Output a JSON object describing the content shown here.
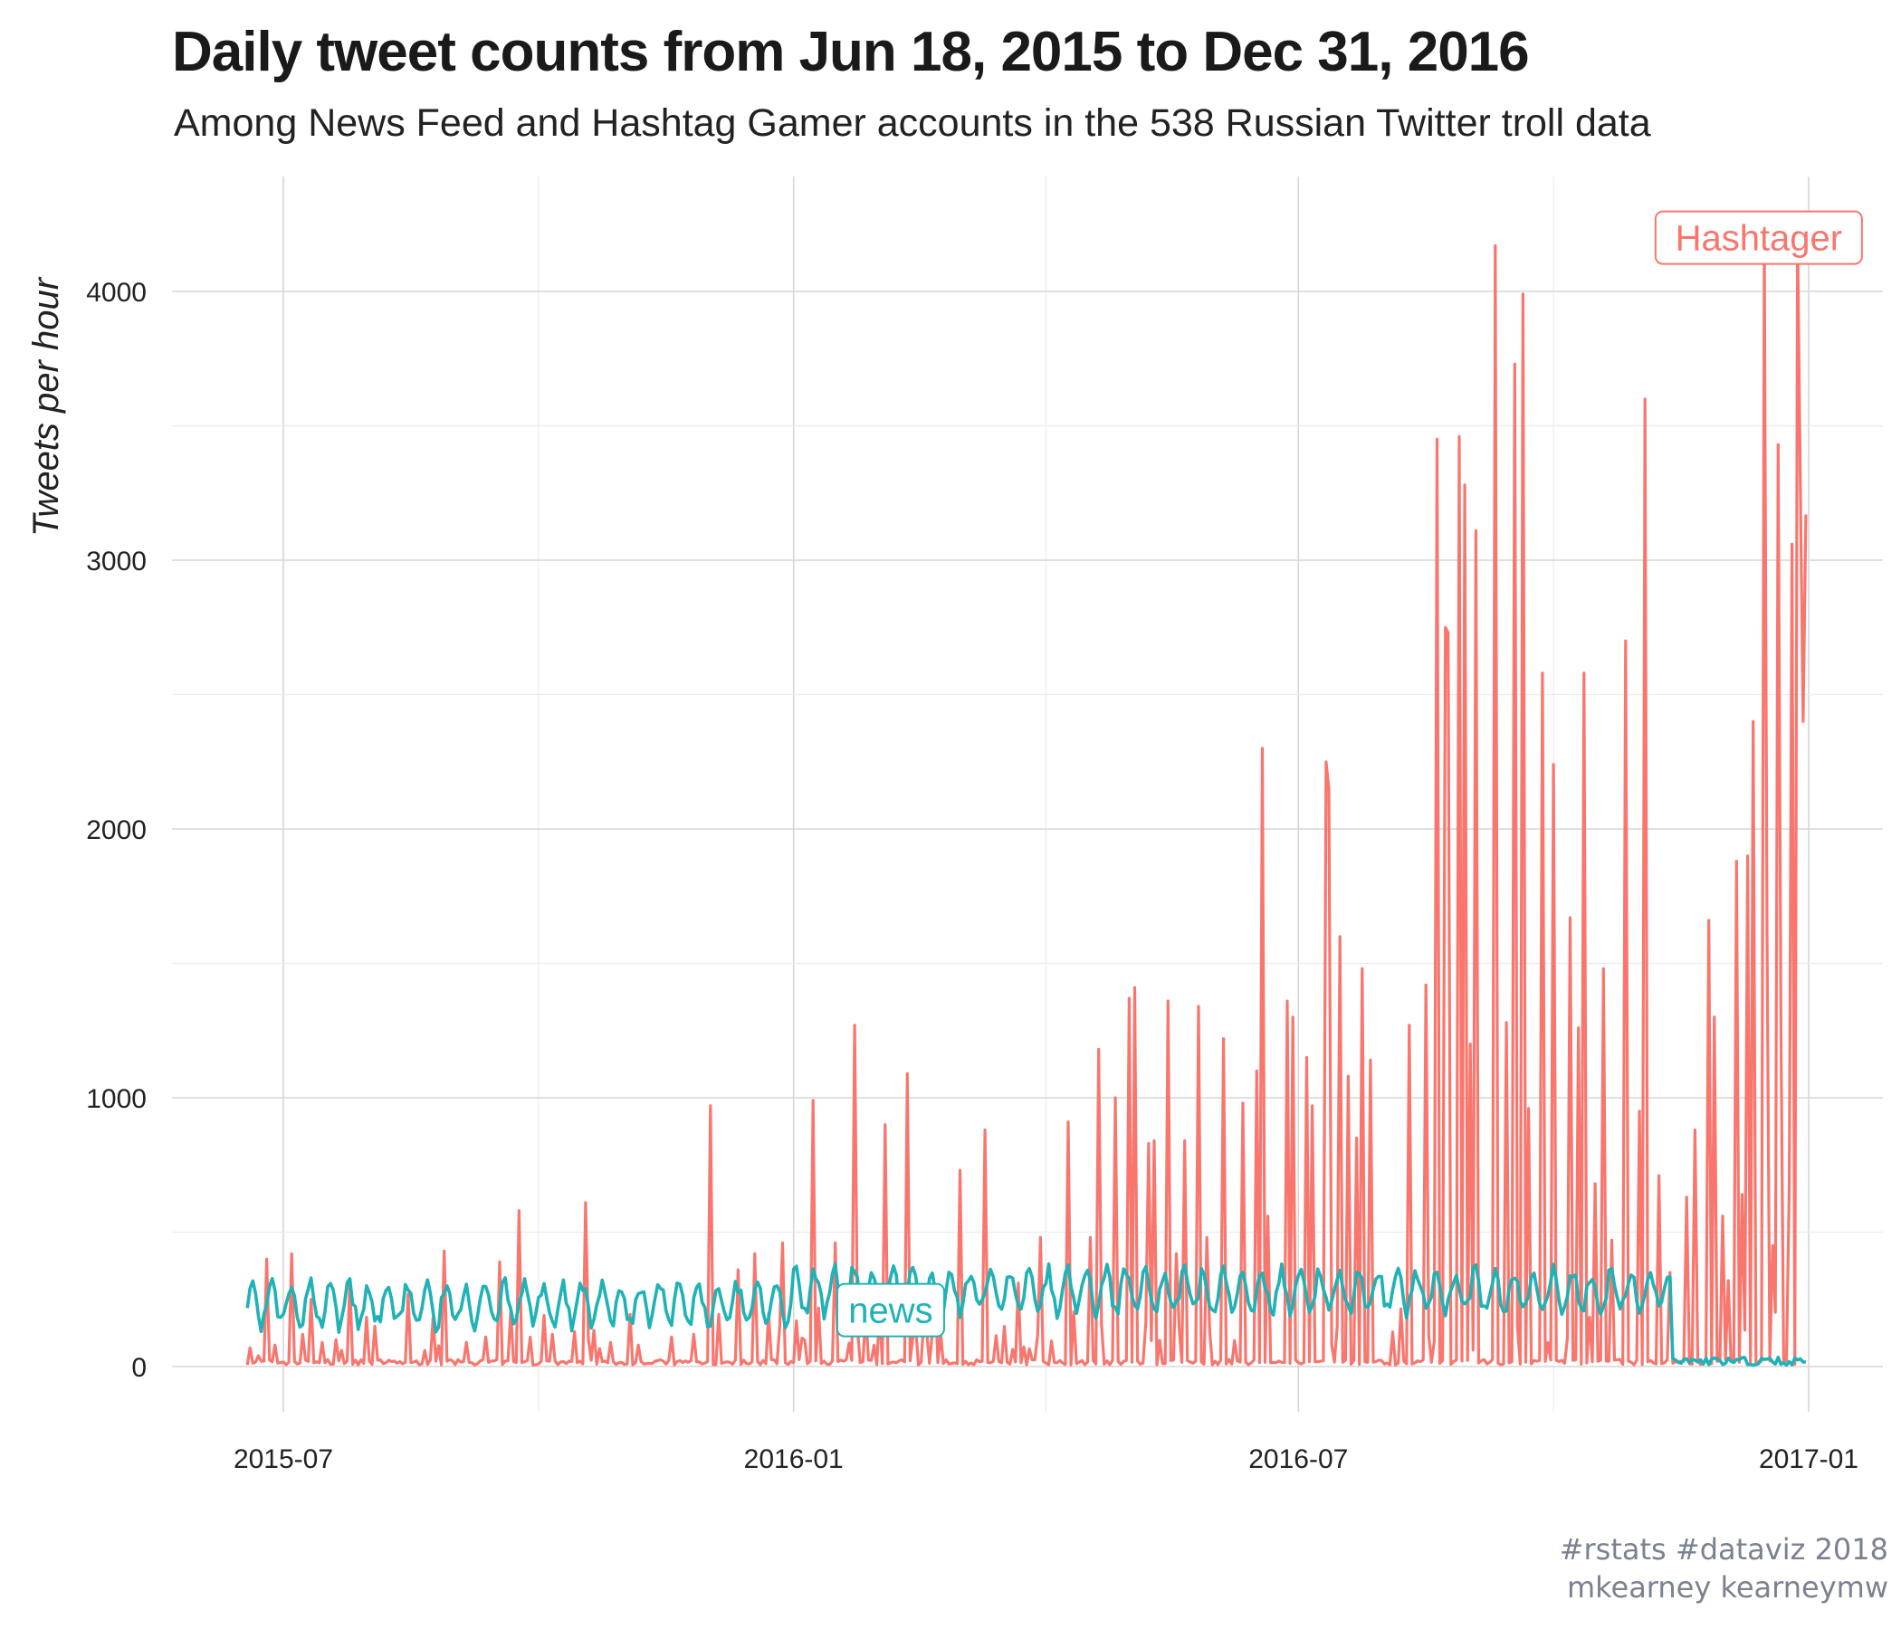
{
  "title": "Daily tweet counts from Jun 18, 2015 to Dec 31, 2016",
  "subtitle": "Among News Feed and Hashtag Gamer accounts in the 538 Russian Twitter troll data",
  "caption": {
    "line1": "#rstats #dataviz 2018",
    "line2": "mkearney kearneymw"
  },
  "chart_data": {
    "type": "line",
    "title": "Daily tweet counts from Jun 18, 2015 to Dec 31, 2016",
    "xlabel": "",
    "ylabel": "Tweets per hour",
    "xlim": [
      "2015-06-18",
      "2016-12-31"
    ],
    "ylim": [
      0,
      4300
    ],
    "x_ticks": [
      "2015-07",
      "2016-01",
      "2016-07",
      "2017-01"
    ],
    "y_ticks": [
      0,
      1000,
      2000,
      3000,
      4000
    ],
    "grid": true,
    "legend": "none",
    "series": [
      {
        "name": "Hashtager",
        "color": "#f8766d",
        "baseline": 20,
        "spikes": [
          [
            "2015-06-19",
            70
          ],
          [
            "2015-06-22",
            40
          ],
          [
            "2015-06-25",
            400
          ],
          [
            "2015-06-28",
            80
          ],
          [
            "2015-07-04",
            420
          ],
          [
            "2015-07-08",
            120
          ],
          [
            "2015-07-11",
            250
          ],
          [
            "2015-07-15",
            90
          ],
          [
            "2015-07-20",
            100
          ],
          [
            "2015-07-25",
            320
          ],
          [
            "2015-08-03",
            150
          ],
          [
            "2015-08-15",
            270
          ],
          [
            "2015-08-21",
            60
          ],
          [
            "2015-08-28",
            430
          ],
          [
            "2015-09-05",
            90
          ],
          [
            "2015-09-12",
            110
          ],
          [
            "2015-09-17",
            390
          ],
          [
            "2015-09-24",
            580
          ],
          [
            "2015-10-06",
            120
          ],
          [
            "2015-10-14",
            130
          ],
          [
            "2015-10-18",
            610
          ],
          [
            "2015-10-27",
            90
          ],
          [
            "2015-11-06",
            80
          ],
          [
            "2015-11-18",
            110
          ],
          [
            "2015-11-26",
            120
          ],
          [
            "2015-12-02",
            970
          ],
          [
            "2015-12-12",
            360
          ],
          [
            "2015-12-18",
            420
          ],
          [
            "2015-12-28",
            460
          ],
          [
            "2016-01-02",
            170
          ],
          [
            "2016-01-08",
            990
          ],
          [
            "2016-01-16",
            460
          ],
          [
            "2016-01-23",
            1270
          ],
          [
            "2016-02-01",
            210
          ],
          [
            "2016-02-03",
            900
          ],
          [
            "2016-02-11",
            1090
          ],
          [
            "2016-02-21",
            300
          ],
          [
            "2016-03-01",
            730
          ],
          [
            "2016-03-10",
            880
          ],
          [
            "2016-03-22",
            310
          ],
          [
            "2016-03-30",
            480
          ],
          [
            "2016-04-09",
            910
          ],
          [
            "2016-04-17",
            480
          ],
          [
            "2016-04-20",
            1180
          ],
          [
            "2016-04-26",
            1000
          ],
          [
            "2016-05-01",
            1370
          ],
          [
            "2016-05-03",
            1410
          ],
          [
            "2016-05-08",
            830
          ],
          [
            "2016-05-10",
            840
          ],
          [
            "2016-05-15",
            1360
          ],
          [
            "2016-05-18",
            420
          ],
          [
            "2016-05-21",
            840
          ],
          [
            "2016-05-26",
            1340
          ],
          [
            "2016-05-29",
            480
          ],
          [
            "2016-06-04",
            1220
          ],
          [
            "2016-06-11",
            980
          ],
          [
            "2016-06-16",
            1100
          ],
          [
            "2016-06-18",
            2300
          ],
          [
            "2016-06-20",
            560
          ],
          [
            "2016-06-27",
            1360
          ],
          [
            "2016-06-29",
            1300
          ],
          [
            "2016-07-04",
            1150
          ],
          [
            "2016-07-06",
            970
          ],
          [
            "2016-07-11",
            2250
          ],
          [
            "2016-07-12",
            2150
          ],
          [
            "2016-07-16",
            1600
          ],
          [
            "2016-07-19",
            1080
          ],
          [
            "2016-07-22",
            850
          ],
          [
            "2016-07-24",
            1480
          ],
          [
            "2016-07-27",
            1140
          ],
          [
            "2016-08-10",
            1270
          ],
          [
            "2016-08-16",
            1420
          ],
          [
            "2016-08-20",
            3450
          ],
          [
            "2016-08-23",
            2750
          ],
          [
            "2016-08-24",
            2730
          ],
          [
            "2016-08-28",
            3460
          ],
          [
            "2016-08-30",
            3280
          ],
          [
            "2016-09-01",
            1200
          ],
          [
            "2016-09-03",
            3110
          ],
          [
            "2016-09-10",
            4170
          ],
          [
            "2016-09-14",
            1280
          ],
          [
            "2016-09-17",
            3730
          ],
          [
            "2016-09-20",
            3990
          ],
          [
            "2016-09-22",
            960
          ],
          [
            "2016-09-27",
            2580
          ],
          [
            "2016-10-01",
            2240
          ],
          [
            "2016-10-07",
            1670
          ],
          [
            "2016-10-10",
            1260
          ],
          [
            "2016-10-12",
            2580
          ],
          [
            "2016-10-16",
            680
          ],
          [
            "2016-10-19",
            1480
          ],
          [
            "2016-10-22",
            470
          ],
          [
            "2016-10-27",
            2700
          ],
          [
            "2016-11-01",
            950
          ],
          [
            "2016-11-03",
            3600
          ],
          [
            "2016-11-08",
            710
          ],
          [
            "2016-11-12",
            350
          ],
          [
            "2016-11-18",
            630
          ],
          [
            "2016-11-21",
            880
          ],
          [
            "2016-11-26",
            1660
          ],
          [
            "2016-11-28",
            1300
          ],
          [
            "2016-12-01",
            560
          ],
          [
            "2016-12-03",
            320
          ],
          [
            "2016-12-06",
            1880
          ],
          [
            "2016-12-08",
            640
          ],
          [
            "2016-12-10",
            1900
          ],
          [
            "2016-12-12",
            2400
          ],
          [
            "2016-12-16",
            4180
          ],
          [
            "2016-12-17",
            1620
          ],
          [
            "2016-12-19",
            450
          ],
          [
            "2016-12-21",
            3430
          ],
          [
            "2016-12-22",
            1250
          ],
          [
            "2016-12-25",
            680
          ],
          [
            "2016-12-26",
            3060
          ],
          [
            "2016-12-28",
            4220
          ],
          [
            "2016-12-29",
            3290
          ],
          [
            "2016-12-30",
            2400
          ],
          [
            "2016-12-31",
            3170
          ]
        ]
      },
      {
        "name": "news",
        "color": "#1fb2b6",
        "level_2015": 230,
        "level_2016": 280,
        "drop_date": "2016-11-13",
        "level_after_drop": 20
      }
    ],
    "annotations": [
      {
        "text": "Hashtager",
        "x": "2016-12-14",
        "y": 4200,
        "color": "#f8766d"
      },
      {
        "text": "news",
        "x": "2016-02-05",
        "y": 210,
        "color": "#1fb2b6"
      }
    ]
  }
}
